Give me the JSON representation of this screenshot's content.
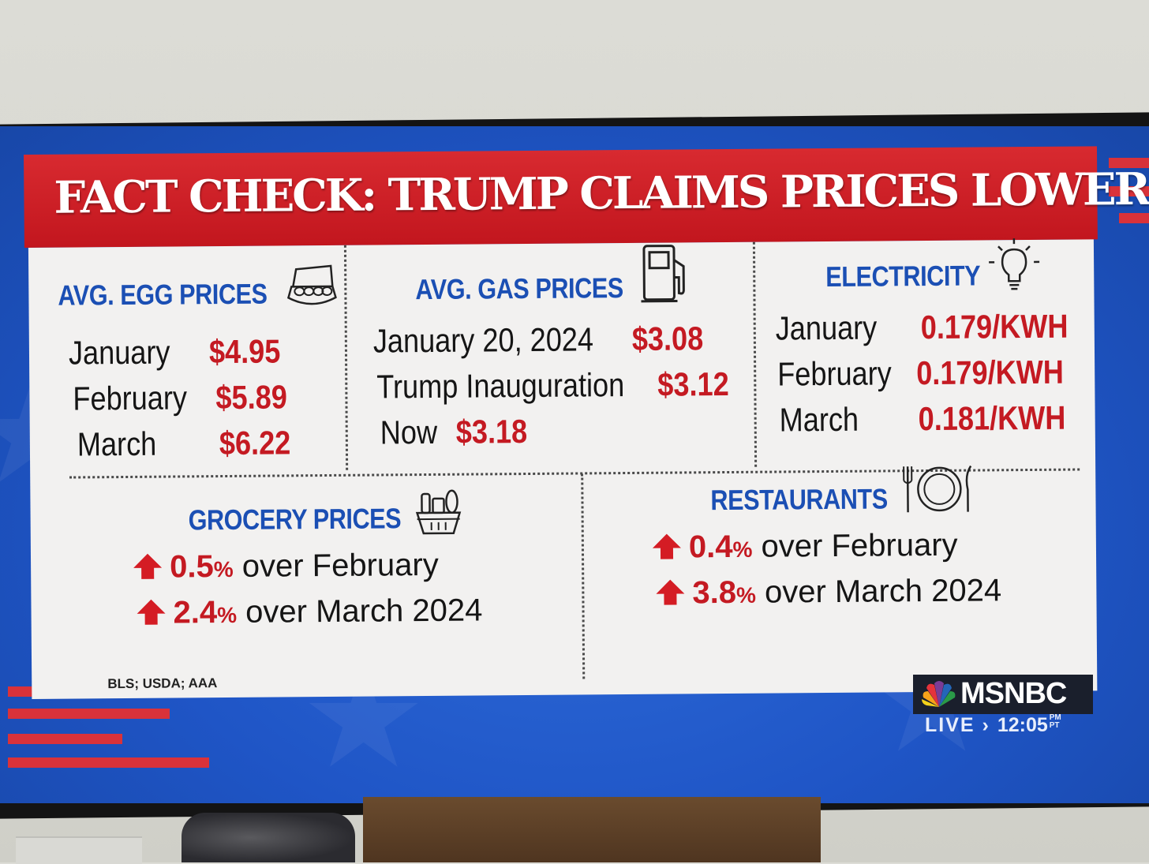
{
  "graphic": {
    "title": "FACT CHECK: TRUMP CLAIMS PRICES LOWER",
    "source": "BLS; USDA; AAA"
  },
  "egg": {
    "title": "AVG. EGG PRICES",
    "icon": "egg-carton-icon",
    "rows": [
      {
        "label": "January",
        "value": "$4.95"
      },
      {
        "label": "February",
        "value": "$5.89"
      },
      {
        "label": "March",
        "value": "$6.22"
      }
    ]
  },
  "gas": {
    "title": "AVG. GAS PRICES",
    "icon": "gas-pump-icon",
    "rows": [
      {
        "label": "January 20, 2024",
        "value": "$3.08"
      },
      {
        "label": "Trump Inauguration",
        "value": "$3.12"
      },
      {
        "label": "Now",
        "value": "$3.18"
      }
    ]
  },
  "electricity": {
    "title": "ELECTRICITY",
    "icon": "lightbulb-icon",
    "rows": [
      {
        "label": "January",
        "value": "0.179/KWH"
      },
      {
        "label": "February",
        "value": "0.179/KWH"
      },
      {
        "label": "March",
        "value": "0.181/KWH"
      }
    ]
  },
  "grocery": {
    "title": "GROCERY PRICES",
    "icon": "grocery-basket-icon",
    "rows": [
      {
        "pct": "0.5",
        "unit": "%",
        "text": " over February"
      },
      {
        "pct": "2.4",
        "unit": "%",
        "text": " over March 2024"
      }
    ]
  },
  "restaurants": {
    "title": "RESTAURANTS",
    "icon": "fork-plate-knife-icon",
    "rows": [
      {
        "pct": "0.4",
        "unit": "%",
        "text": " over February"
      },
      {
        "pct": "3.8",
        "unit": "%",
        "text": " over March 2024"
      }
    ]
  },
  "network": {
    "logo_text": "MSNBC",
    "live_label": "LIVE",
    "live_separator": "›",
    "time": "12:05",
    "ampm": "PM",
    "timezone": "PT"
  },
  "colors": {
    "header_red": "#c8191f",
    "title_blue": "#1b4fb4",
    "value_red": "#c41a22",
    "screen_blue": "#1f55c6"
  }
}
